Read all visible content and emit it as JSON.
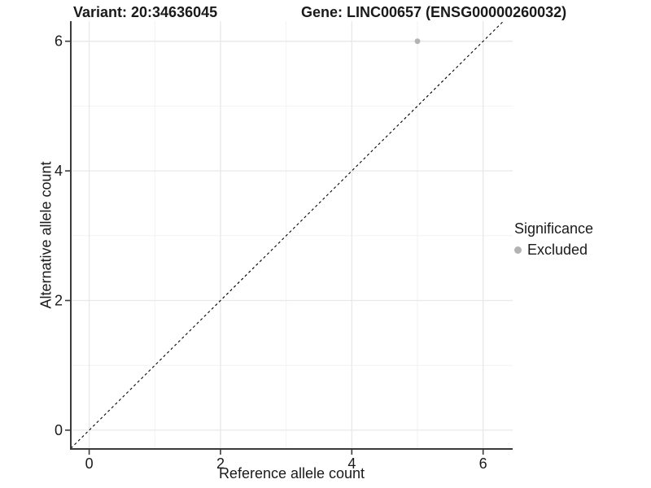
{
  "chart_data": {
    "type": "scatter",
    "title": {
      "variant": "Variant: 20:34636045",
      "gene": "Gene: LINC00657 (ENSG00000260032)"
    },
    "xlabel": "Reference allele count",
    "ylabel": "Alternative allele count",
    "xlim": [
      -0.28,
      6.45
    ],
    "ylim": [
      -0.29,
      6.31
    ],
    "xticks": [
      0,
      2,
      4,
      6
    ],
    "yticks": [
      0,
      2,
      4,
      6
    ],
    "minor_xticks": [
      1,
      3,
      5
    ],
    "minor_yticks": [
      1,
      3,
      5
    ],
    "grid": true,
    "points": [
      {
        "x": 5,
        "y": 6,
        "significance": "Excluded"
      }
    ],
    "identity_line": {
      "slope": 1,
      "intercept": 0,
      "style": "dashed",
      "color": "#000000"
    },
    "legend": {
      "position": "right",
      "title": "Significance",
      "items": [
        {
          "label": "Excluded",
          "color": "#b3b3b3"
        }
      ]
    },
    "colors": {
      "point": "#b3b3b3",
      "grid_major": "#e8e8e8",
      "grid_minor": "#f2f2f2",
      "axis": "#3a3a3a",
      "text": "#1a1a1a",
      "background": "#ffffff"
    }
  }
}
